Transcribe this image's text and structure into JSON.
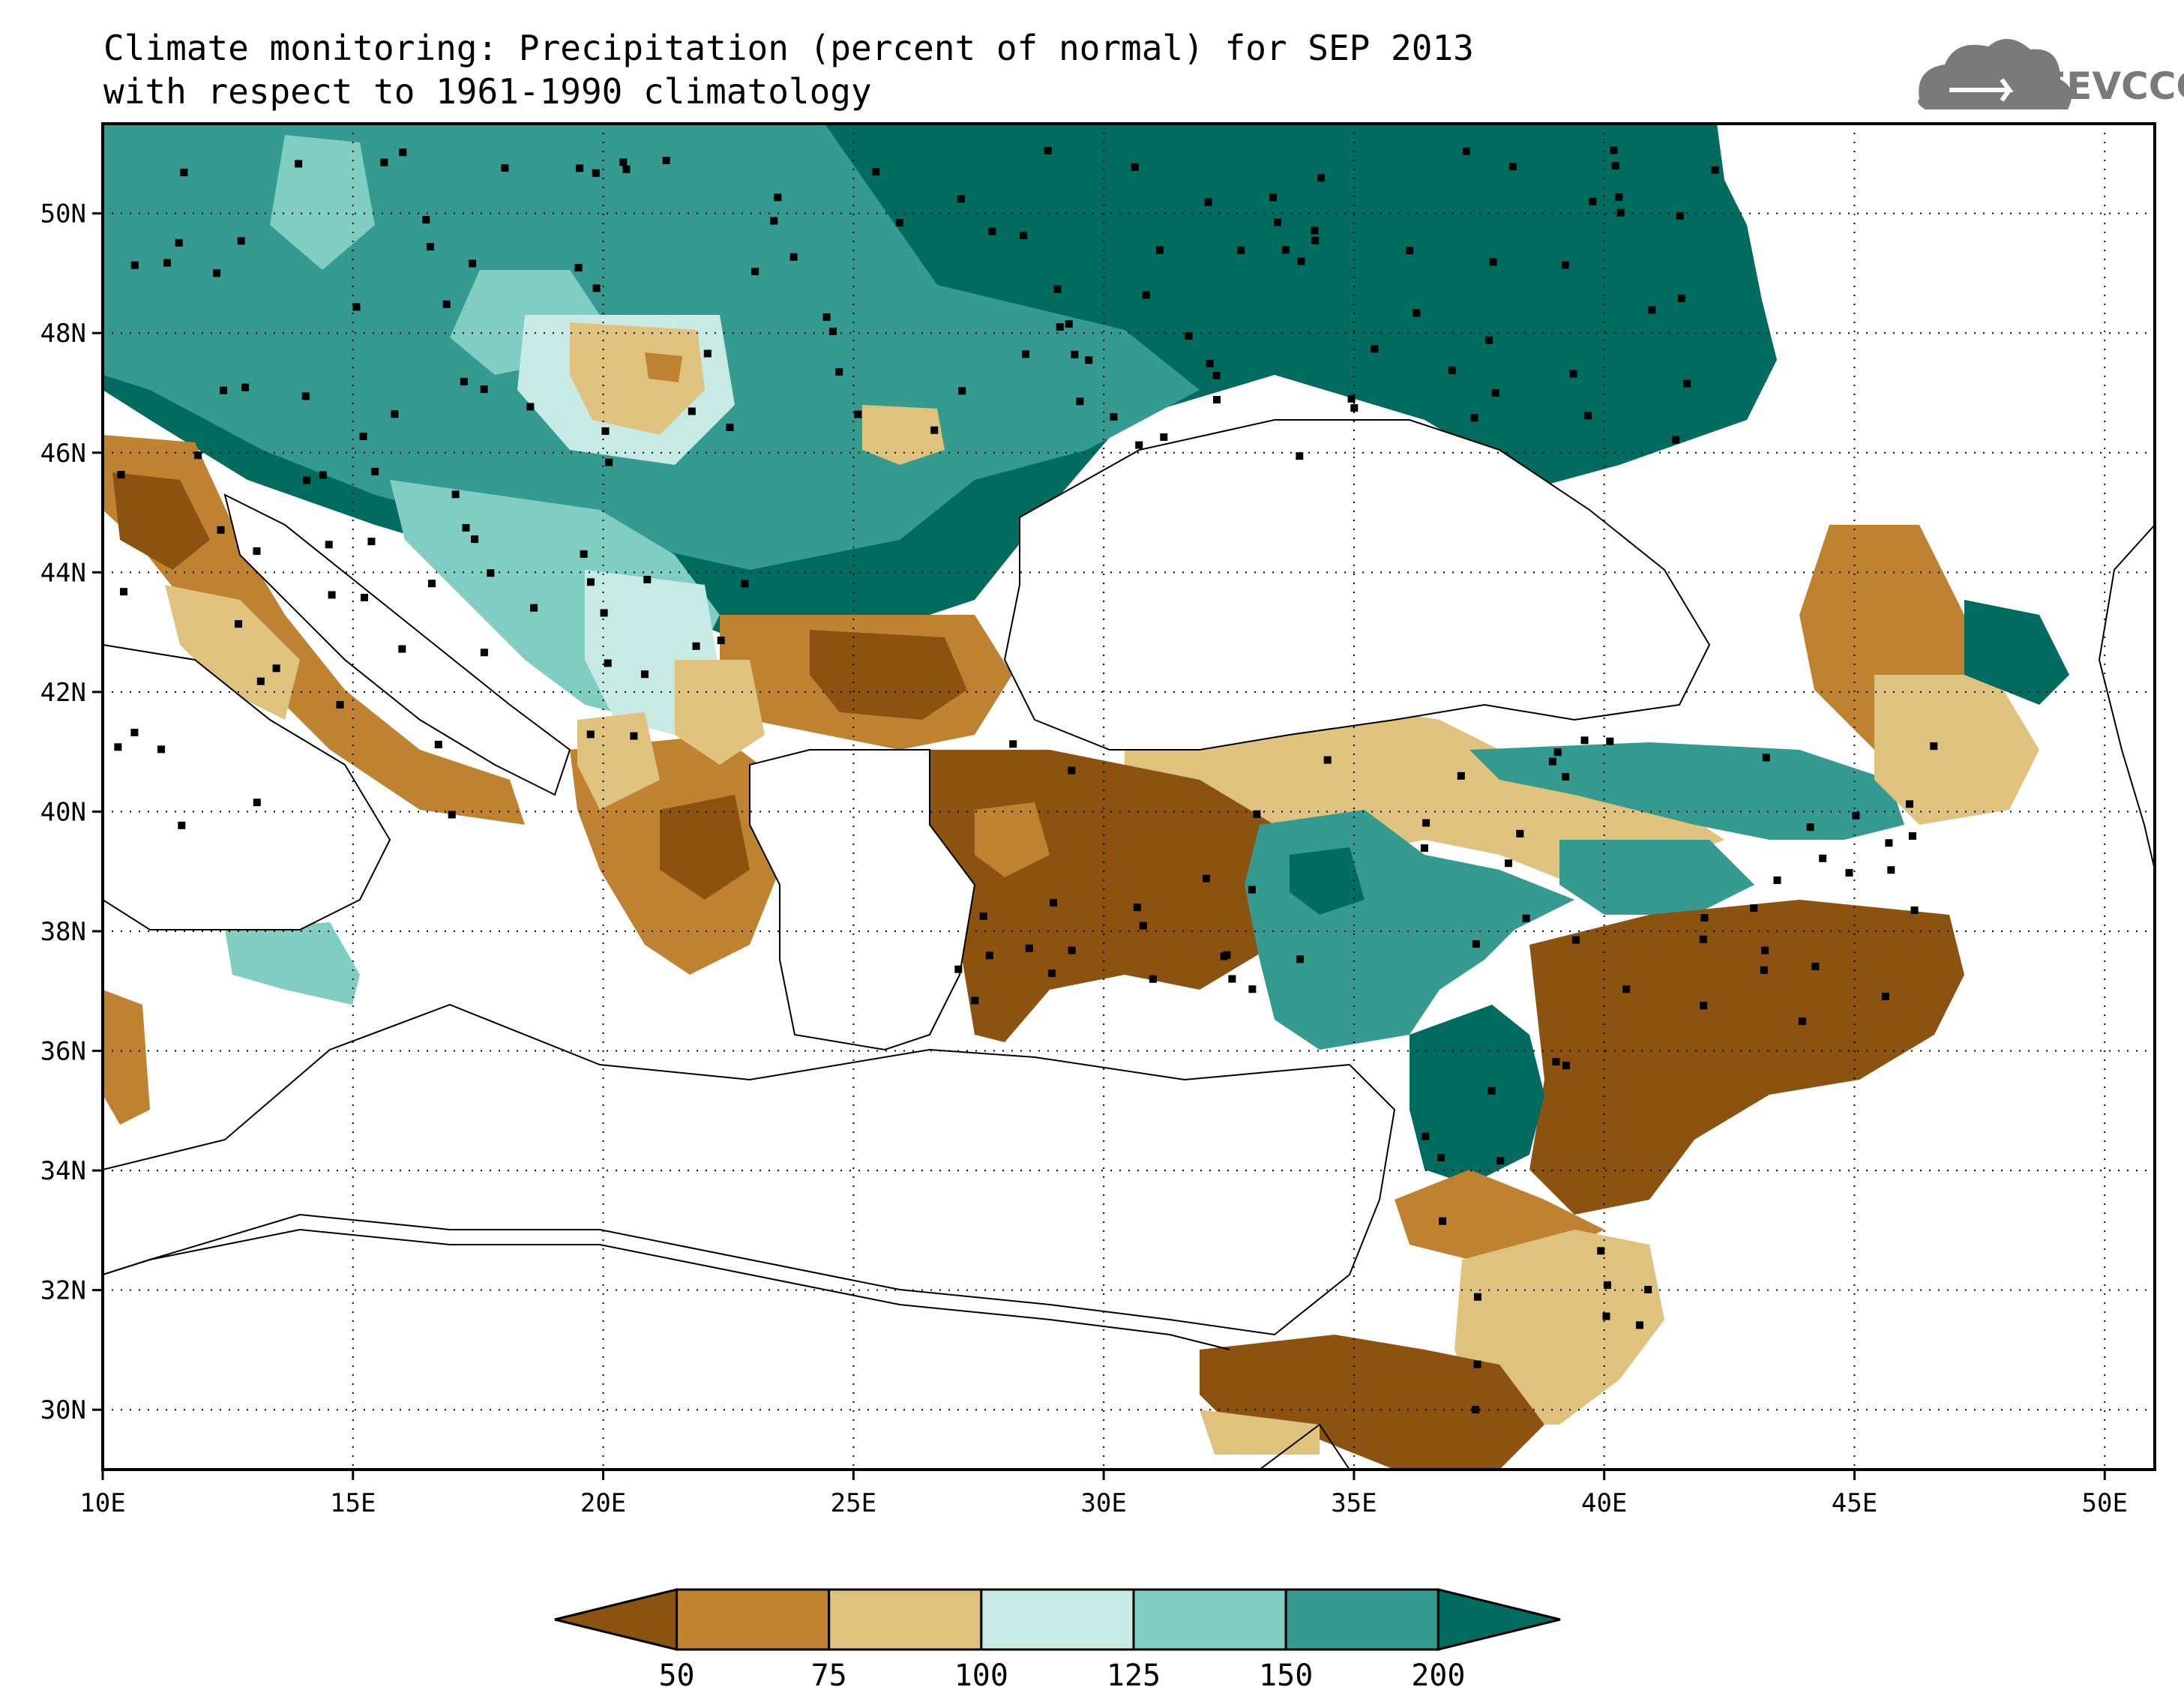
{
  "title": {
    "line1": "Climate monitoring: Precipitation (percent of normal) for SEP 2013",
    "line2": "with respect to 1961-1990 climatology"
  },
  "logo": {
    "text": "SEEVCCC",
    "icon": "cloud-logo-icon"
  },
  "axes": {
    "lon_ticks": [
      10,
      15,
      20,
      25,
      30,
      35,
      40,
      45,
      50
    ],
    "lon_labels": [
      "10E",
      "15E",
      "20E",
      "25E",
      "30E",
      "35E",
      "40E",
      "45E",
      "50E"
    ],
    "lat_ticks": [
      30,
      32,
      34,
      36,
      38,
      40,
      42,
      44,
      46,
      48,
      50
    ],
    "lat_labels": [
      "30N",
      "32N",
      "34N",
      "36N",
      "38N",
      "40N",
      "42N",
      "44N",
      "46N",
      "48N",
      "50N"
    ],
    "lon_range": [
      10,
      51
    ],
    "lat_range": [
      29,
      51.5
    ],
    "grid": "dotted"
  },
  "legend": {
    "labels": [
      "50",
      "75",
      "100",
      "125",
      "150",
      "200"
    ],
    "colors": [
      "#8c5210",
      "#bf8231",
      "#dfc27d",
      "#c7eae4",
      "#80cdc1",
      "#359b91",
      "#006b5f"
    ]
  },
  "palette": {
    "very_dry": "#8c5210",
    "dry": "#bf8231",
    "slightly_dry": "#dfc27d",
    "slightly_wet": "#c7eae4",
    "wet": "#80cdc1",
    "very_wet": "#359b91",
    "extremely_wet": "#006b5f",
    "sea": "#ffffff"
  }
}
